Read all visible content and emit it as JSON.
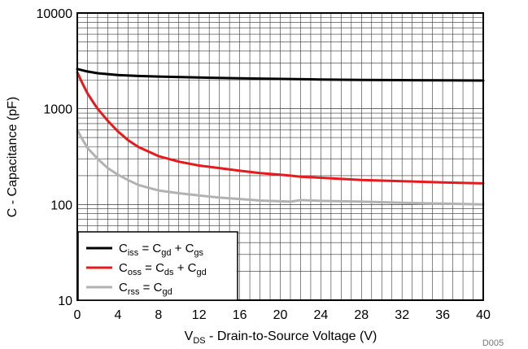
{
  "chart_data": {
    "type": "line",
    "title": "",
    "figure_id": "D005",
    "xlabel": {
      "main": "V",
      "sub": "DS",
      "rest": " - Drain-to-Source Voltage (V)"
    },
    "ylabel": "C - Capacitance (pF)",
    "xlim": [
      0,
      40
    ],
    "ylim": [
      10,
      10000
    ],
    "yscale": "log",
    "grid": true,
    "legend_position": "bottom-left",
    "x_ticks": [
      0,
      4,
      8,
      12,
      16,
      20,
      24,
      28,
      32,
      36,
      40
    ],
    "x_tick_labels": [
      "0",
      "4",
      "8",
      "12",
      "16",
      "20",
      "24",
      "28",
      "32",
      "36",
      "40"
    ],
    "y_ticks": [
      10,
      100,
      1000,
      10000
    ],
    "y_tick_labels": [
      "10",
      "100",
      "1000",
      "10000"
    ],
    "series": [
      {
        "name": "Ciss = Cgd + Cgs",
        "legend": [
          {
            "t": "C"
          },
          {
            "t": "iss",
            "sub": true
          },
          {
            "t": " = C"
          },
          {
            "t": "gd",
            "sub": true
          },
          {
            "t": " + C"
          },
          {
            "t": "gs",
            "sub": true
          }
        ],
        "color": "#000000",
        "x": [
          0,
          1,
          2,
          4,
          6,
          8,
          12,
          16,
          20,
          24,
          28,
          32,
          36,
          40
        ],
        "y": [
          2600,
          2450,
          2350,
          2250,
          2200,
          2170,
          2120,
          2080,
          2050,
          2020,
          2000,
          1990,
          1980,
          1970
        ]
      },
      {
        "name": "Coss = Cds + Cgd",
        "legend": [
          {
            "t": "C"
          },
          {
            "t": "oss",
            "sub": true
          },
          {
            "t": " = C"
          },
          {
            "t": "ds",
            "sub": true
          },
          {
            "t": " + C"
          },
          {
            "t": "gd",
            "sub": true
          }
        ],
        "color": "#e8191c",
        "x": [
          0,
          0.5,
          1,
          1.5,
          2,
          3,
          4,
          5,
          6,
          8,
          10,
          12,
          14,
          16,
          18,
          20,
          21,
          22,
          24,
          28,
          32,
          36,
          40
        ],
        "y": [
          2400,
          1850,
          1450,
          1200,
          1000,
          750,
          580,
          470,
          400,
          320,
          280,
          255,
          240,
          225,
          213,
          205,
          200,
          195,
          190,
          180,
          175,
          170,
          166
        ]
      },
      {
        "name": "Crss = Cgd",
        "legend": [
          {
            "t": "C"
          },
          {
            "t": "rss",
            "sub": true
          },
          {
            "t": " = C"
          },
          {
            "t": "gd",
            "sub": true
          }
        ],
        "color": "#b2b2b2",
        "x": [
          0,
          0.5,
          1,
          2,
          3,
          4,
          5,
          6,
          8,
          10,
          12,
          14,
          16,
          18,
          20,
          21,
          22,
          24,
          28,
          32,
          36,
          40
        ],
        "y": [
          600,
          480,
          390,
          300,
          240,
          205,
          180,
          160,
          140,
          131,
          124,
          118,
          114,
          110,
          108,
          107,
          111,
          109,
          107,
          104,
          102,
          100
        ]
      }
    ]
  }
}
